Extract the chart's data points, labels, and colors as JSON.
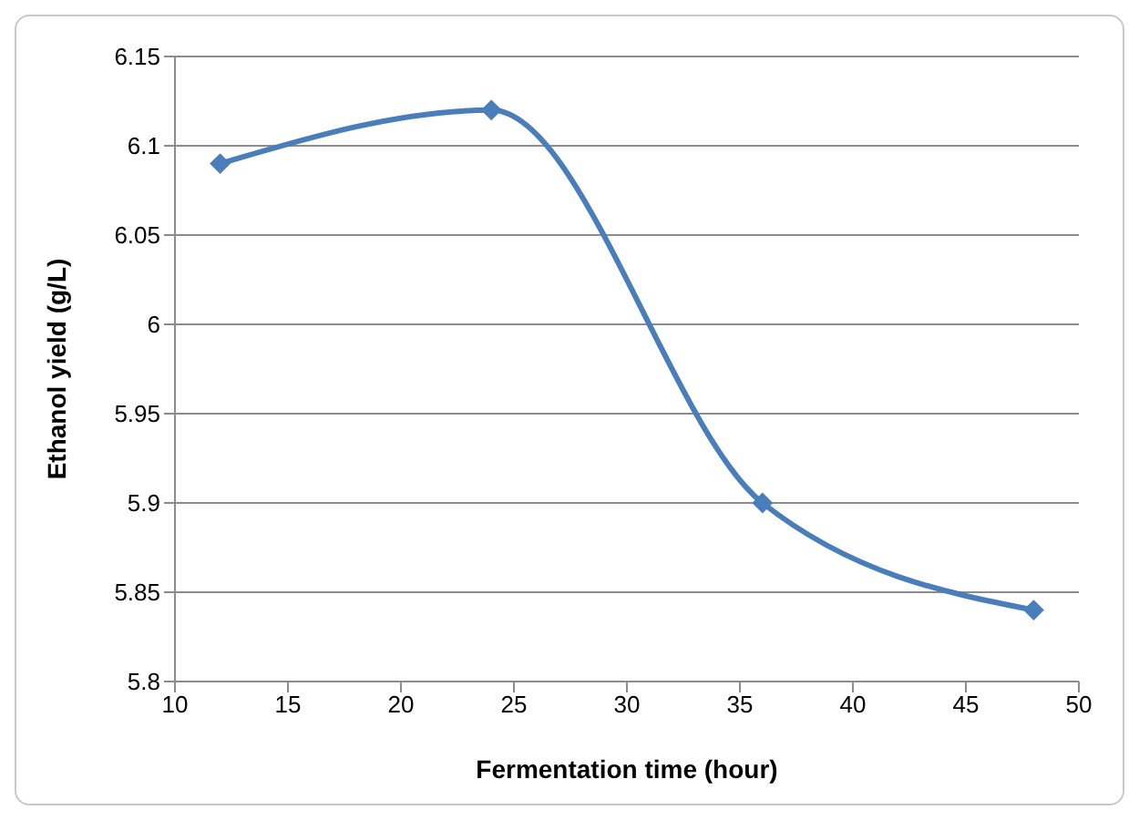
{
  "chart_data": {
    "type": "line",
    "xlabel": "Fermentation time (hour)",
    "ylabel": "Ethanol yield (g/L)",
    "x": [
      12,
      24,
      36,
      48
    ],
    "series": [
      {
        "color": "#4a7ebb",
        "values": [
          6.09,
          6.12,
          5.9,
          5.84
        ]
      }
    ],
    "xlim": [
      10,
      50
    ],
    "xticks": [
      10,
      15,
      20,
      25,
      30,
      35,
      40,
      45,
      50
    ],
    "ylim": [
      5.8,
      6.15
    ],
    "yticks": [
      5.8,
      5.85,
      5.9,
      5.95,
      6,
      6.05,
      6.1,
      6.15
    ],
    "grid": "y",
    "legend": false,
    "marker": "diamond",
    "line_style": "solid"
  }
}
